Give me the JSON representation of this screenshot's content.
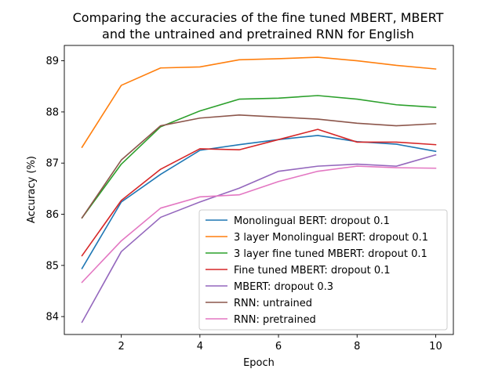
{
  "chart_data": {
    "type": "line",
    "title": "Comparing the accuracies of the fine tuned MBERT, MBERT and the untrained and pretrained RNN for English",
    "title_lines": [
      "Comparing the accuracies of the fine tuned MBERT, MBERT",
      "and the untrained and pretrained RNN for English"
    ],
    "xlabel": "Epoch",
    "ylabel": "Accuracy (%)",
    "xlim": [
      0.55,
      10.45
    ],
    "ylim": [
      83.65,
      89.3
    ],
    "xticks": [
      2,
      4,
      6,
      8,
      10
    ],
    "yticks": [
      84,
      85,
      86,
      87,
      88,
      89
    ],
    "grid": false,
    "legend_position": "lower-right",
    "x": [
      1,
      2,
      3,
      4,
      5,
      6,
      7,
      8,
      9,
      10
    ],
    "series": [
      {
        "name": "Monolingual BERT: dropout 0.1",
        "color": "#1f77b4",
        "values": [
          84.94,
          86.24,
          86.78,
          87.25,
          87.36,
          87.46,
          87.54,
          87.42,
          87.37,
          87.23
        ]
      },
      {
        "name": "3 layer Monolingual BERT: dropout 0.1",
        "color": "#ff7f0e",
        "values": [
          87.31,
          88.52,
          88.86,
          88.88,
          89.02,
          89.04,
          89.07,
          89.0,
          88.91,
          88.84
        ]
      },
      {
        "name": "3 layer fine tuned MBERT: dropout 0.1",
        "color": "#2ca02c",
        "values": [
          85.93,
          86.98,
          87.71,
          88.02,
          88.25,
          88.27,
          88.32,
          88.25,
          88.14,
          88.09
        ]
      },
      {
        "name": "Fine tuned MBERT: dropout 0.1",
        "color": "#d62728",
        "values": [
          85.19,
          86.27,
          86.88,
          87.28,
          87.26,
          87.46,
          87.66,
          87.41,
          87.41,
          87.36
        ]
      },
      {
        "name": "MBERT: dropout 0.3",
        "color": "#9467bd",
        "values": [
          83.89,
          85.27,
          85.94,
          86.24,
          86.51,
          86.84,
          86.94,
          86.98,
          86.94,
          87.16
        ]
      },
      {
        "name": "RNN: untrained",
        "color": "#8c564b",
        "values": [
          85.93,
          87.06,
          87.73,
          87.88,
          87.94,
          87.9,
          87.86,
          87.78,
          87.73,
          87.77
        ]
      },
      {
        "name": "RNN: pretrained",
        "color": "#e377c2",
        "values": [
          84.67,
          85.48,
          86.12,
          86.34,
          86.38,
          86.64,
          86.84,
          86.94,
          86.91,
          86.9
        ]
      }
    ]
  }
}
